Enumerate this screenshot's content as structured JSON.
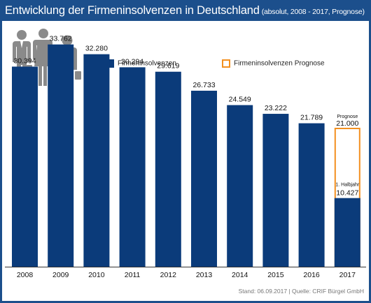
{
  "header": {
    "title": "Entwicklung der Firmeninsolvenzen in Deutschland",
    "subtitle": "(absolut, 2008 - 2017, Prognose)"
  },
  "icons": {
    "people": "business-people-icon"
  },
  "legend": {
    "items": [
      {
        "label": "Firmeninsolvenzen",
        "color": "#0b3b7a"
      },
      {
        "label": "Firmeninsolvenzen Prognose",
        "color": "#f39020"
      }
    ]
  },
  "footer": {
    "source": "Stand: 06.09.2017 | Quelle: CRIF Bürgel GmbH"
  },
  "chart_data": {
    "type": "bar",
    "categories": [
      "2008",
      "2009",
      "2010",
      "2011",
      "2012",
      "2013",
      "2014",
      "2015",
      "2016",
      "2017"
    ],
    "series": [
      {
        "name": "Firmeninsolvenzen",
        "values": [
          30394,
          33762,
          32280,
          30294,
          29619,
          26733,
          24549,
          23222,
          21789,
          10427
        ],
        "labels": [
          "30.394",
          "33.762",
          "32.280",
          "30.294",
          "29.619",
          "26.733",
          "24.549",
          "23.222",
          "21.789",
          "10.427"
        ]
      },
      {
        "name": "Firmeninsolvenzen Prognose",
        "values": [
          null,
          null,
          null,
          null,
          null,
          null,
          null,
          null,
          null,
          21000
        ],
        "labels": [
          "",
          "",
          "",
          "",
          "",
          "",
          "",
          "",
          "",
          "21.000"
        ]
      }
    ],
    "annotations": {
      "forecast": "Prognose",
      "halfyear": "1. Halbjahr"
    },
    "ylim": [
      0,
      35000
    ],
    "grid": false,
    "legend_position": "top",
    "colors": {
      "actual": "#0b3b7a",
      "forecast": "#f39020",
      "axis": "#333333"
    }
  }
}
